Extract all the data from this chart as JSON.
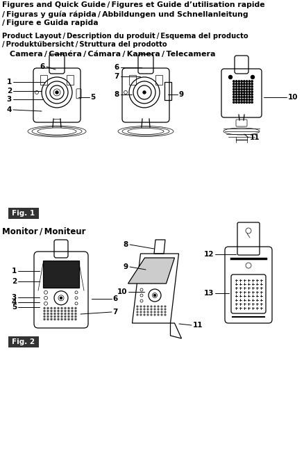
{
  "title_line1": "Figures and Quick Guide / Figures et Guide d’utilisation rapide",
  "title_line2": "/ Figuras y guía rápida / Abbildungen und Schnellanleitung",
  "title_line3": "/ Figure e Guida rapida",
  "subtitle_line1": "Product Layout / Description du produit / Esquema del producto",
  "subtitle_line2": "/ Produktübersicht / Struttura del prodotto",
  "camera_label": "Camera / Caméra / Cámara / Kamera / Telecamera",
  "monitor_label": "Monitor / Moniteur",
  "fig1_label": "Fig. 1",
  "fig2_label": "Fig. 2",
  "bg_color": "#ffffff",
  "text_color": "#000000",
  "fig_label_bg": "#333333",
  "fig_label_fg": "#ffffff",
  "lw_main": 0.9,
  "lw_thin": 0.5,
  "callout_lw": 0.7
}
